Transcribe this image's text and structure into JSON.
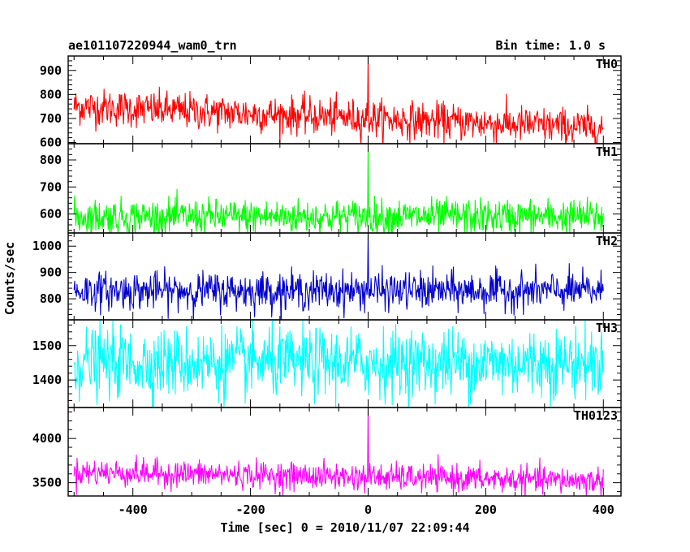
{
  "header": {
    "title": "ae101107220944_wam0_trn",
    "bin_time": "Bin time: 1.0 s"
  },
  "chart_data": {
    "type": "line",
    "title": "ae101107220944_wam0_trn",
    "subtitle": "Bin time: 1.0 s",
    "xlabel": "Time [sec] 0 = 2010/11/07 22:09:44",
    "ylabel": "Counts/sec",
    "xlim": [
      -510,
      430
    ],
    "xticks": [
      -400,
      -200,
      0,
      200,
      400
    ],
    "x_start": -500,
    "x_end": 400,
    "bin_time": 1.0,
    "grid": false,
    "panels": [
      {
        "name": "TH0",
        "color": "#ff0000",
        "ylim": [
          595,
          960
        ],
        "yticks": [
          600,
          700,
          800,
          900
        ],
        "trend_start": 750,
        "trend_end": 660,
        "noise": 38,
        "spike": {
          "x": 0,
          "y": 960
        }
      },
      {
        "name": "TH1",
        "color": "#00ff00",
        "ylim": [
          530,
          860
        ],
        "yticks": [
          600,
          700,
          800
        ],
        "trend_start": 590,
        "trend_end": 590,
        "noise": 32,
        "spike": {
          "x": 0,
          "y": 860
        }
      },
      {
        "name": "TH2",
        "color": "#0000cc",
        "ylim": [
          720,
          1050
        ],
        "yticks": [
          800,
          900,
          1000
        ],
        "trend_start": 830,
        "trend_end": 830,
        "noise": 35,
        "spike": {
          "x": 0,
          "y": 1050
        }
      },
      {
        "name": "TH3",
        "color": "#00ffff",
        "ylim": [
          1320,
          1575
        ],
        "yticks": [
          1400,
          1500
        ],
        "trend_start": 1450,
        "trend_end": 1450,
        "noise": 50,
        "spike": null
      },
      {
        "name": "TH0123",
        "color": "#ff00ff",
        "ylim": [
          3350,
          4350
        ],
        "yticks": [
          3500,
          4000
        ],
        "trend_start": 3620,
        "trend_end": 3520,
        "noise": 75,
        "spike": {
          "x": 0,
          "y": 4350
        }
      }
    ]
  }
}
